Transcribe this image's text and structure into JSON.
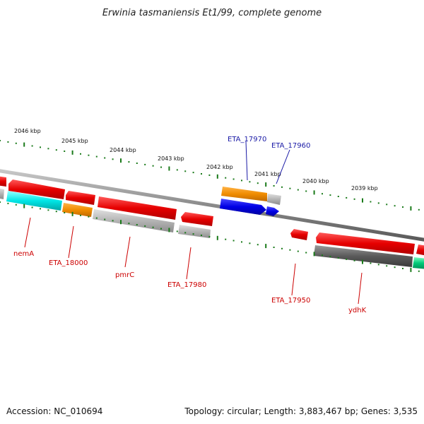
{
  "title": "Erwinia tasmaniensis Et1/99, complete genome",
  "footer": {
    "accession": "Accession: NC_010694",
    "summary": "Topology: circular; Length: 3,883,467 bp; Genes: 3,535"
  },
  "ticks": {
    "labels": [
      "2046 kbp",
      "2045 kbp",
      "2044 kbp",
      "2043 kbp",
      "2042 kbp",
      "2041 kbp",
      "2040 kbp",
      "2039 kbp"
    ]
  },
  "gene_labels": {
    "eta_17970": "ETA_17970",
    "eta_17960": "ETA_17960",
    "nemA": "nemA",
    "eta_18000": "ETA_18000",
    "pmrC": "pmrC",
    "eta_17980": "ETA_17980",
    "eta_17950": "ETA_17950",
    "ydhK": "ydhK"
  },
  "colors": {
    "backbone": "#8a8a8a",
    "tick": "#1a7a1a",
    "gene_red": "#e60000",
    "gene_orange": "#f08c00",
    "gene_blue": "#0000e6",
    "gene_cyan": "#00e6e6",
    "gene_gray": "#b4b4b4",
    "gene_dark": "#5a5a5a",
    "gene_green": "#00c878",
    "label_red": "#cc0000",
    "label_blue": "#1a1aa6"
  }
}
